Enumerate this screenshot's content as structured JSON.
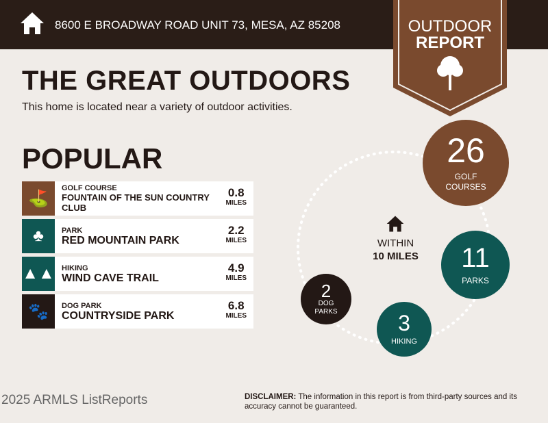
{
  "header": {
    "address": "8600 E BROADWAY ROAD UNIT 73, MESA, AZ 85208",
    "icon": "home-icon"
  },
  "badge": {
    "line1": "OUTDOOR",
    "line2": "REPORT",
    "icon": "tree-icon"
  },
  "title": "THE GREAT OUTDOORS",
  "subtitle": "This home is located near a variety of outdoor activities.",
  "popular": {
    "heading": "POPULAR",
    "items": [
      {
        "category": "GOLF COURSE",
        "name": "FOUNTAIN OF THE SUN COUNTRY CLUB",
        "distance": "0.8",
        "unit": "MILES",
        "icon": "golf-bag-icon",
        "color": "#7a4a2e"
      },
      {
        "category": "PARK",
        "name": "RED MOUNTAIN PARK",
        "distance": "2.2",
        "unit": "MILES",
        "icon": "park-icon",
        "color": "#0f5753"
      },
      {
        "category": "HIKING",
        "name": "WIND CAVE TRAIL",
        "distance": "4.9",
        "unit": "MILES",
        "icon": "pine-trees-icon",
        "color": "#0f5753"
      },
      {
        "category": "DOG PARK",
        "name": "COUNTRYSIDE PARK",
        "distance": "6.8",
        "unit": "MILES",
        "icon": "paw-icon",
        "color": "#231815"
      }
    ]
  },
  "radius": {
    "line1": "WITHIN",
    "line2": "10 MILES"
  },
  "counts": [
    {
      "count": "26",
      "label1": "GOLF",
      "label2": "COURSES",
      "color": "#7a4a2e"
    },
    {
      "count": "11",
      "label1": "PARKS",
      "color": "#0f5753"
    },
    {
      "count": "3",
      "label1": "HIKING",
      "color": "#0f5753"
    },
    {
      "count": "2",
      "label1": "DOG",
      "label2": "PARKS",
      "color": "#231815"
    }
  ],
  "footer": {
    "logo": "2025 ARMLS ListReports",
    "disclaimer_label": "DISCLAIMER:",
    "disclaimer": " The information in this report is from third-party sources and its accuracy cannot be guaranteed."
  }
}
